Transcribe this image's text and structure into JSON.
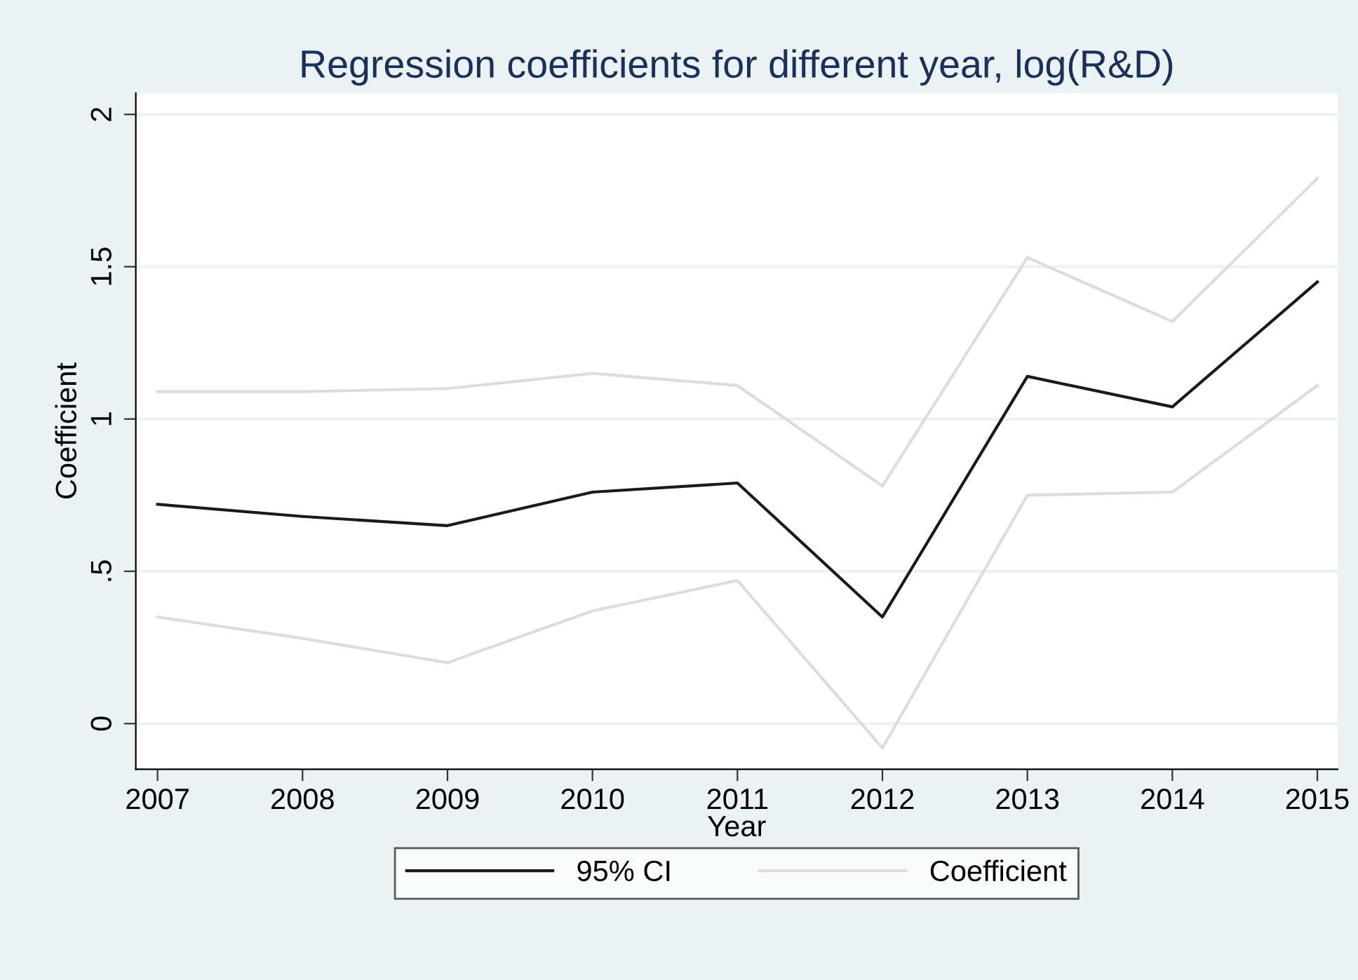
{
  "chart_data": {
    "type": "line",
    "title": "Regression coefficients for different year, log(R&D)",
    "xlabel": "Year",
    "ylabel": "Coefficient",
    "x": [
      2007,
      2008,
      2009,
      2010,
      2011,
      2012,
      2013,
      2014,
      2015
    ],
    "series": [
      {
        "name": "95% CI",
        "color": "#1a1a1a",
        "values": [
          0.72,
          0.68,
          0.65,
          0.76,
          0.79,
          0.35,
          1.14,
          1.04,
          1.45
        ]
      },
      {
        "name": "Coefficient",
        "color": "#dcdcdc",
        "values": [
          1.09,
          1.09,
          1.1,
          1.15,
          1.11,
          0.78,
          1.53,
          1.32,
          1.79
        ]
      },
      {
        "color": "#dcdcdc",
        "values": [
          0.35,
          0.28,
          0.2,
          0.37,
          0.47,
          -0.08,
          0.75,
          0.76,
          1.11
        ]
      }
    ],
    "xlim": [
      2006.85,
      2015.14
    ],
    "ylim": [
      -0.15,
      2.07
    ],
    "xticks": [
      2007,
      2008,
      2009,
      2010,
      2011,
      2012,
      2013,
      2014,
      2015
    ],
    "yticks": [
      {
        "value": 0,
        "label": "0"
      },
      {
        "value": 0.5,
        "label": ".5"
      },
      {
        "value": 1,
        "label": "1"
      },
      {
        "value": 1.5,
        "label": "1.5"
      },
      {
        "value": 2,
        "label": "2"
      }
    ],
    "grid": "y",
    "legend": "bottom",
    "line_style": "solid",
    "marker": "none"
  }
}
